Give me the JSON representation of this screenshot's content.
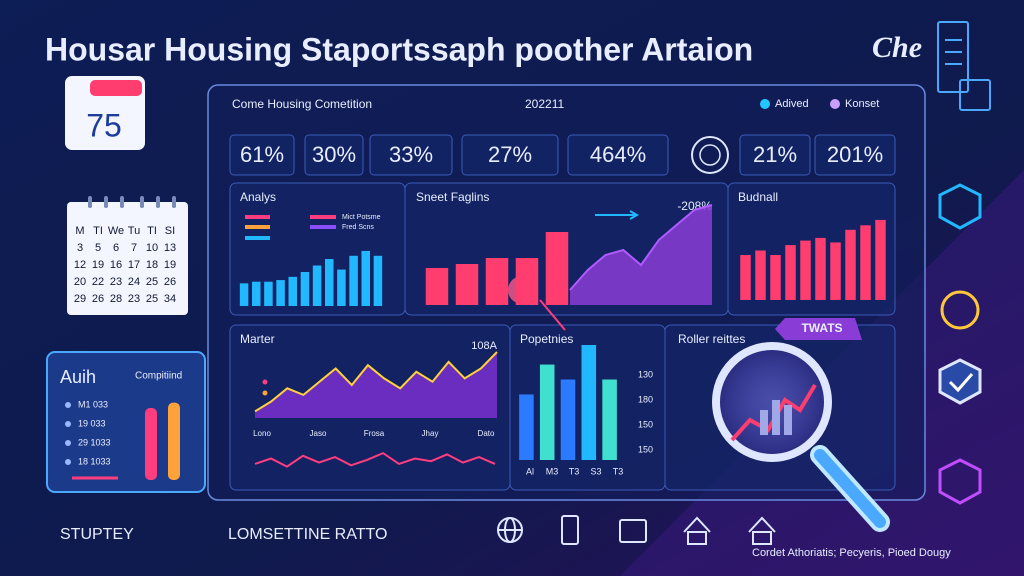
{
  "header": {
    "title": "Housar Housing Staportssaph poother Artaion",
    "badge": "Che"
  },
  "date_widget": {
    "value": "75"
  },
  "calendar": {
    "rows": [
      [
        "M",
        "TI",
        "We",
        "Tu",
        "TI",
        "SI"
      ],
      [
        "3",
        "5",
        "6",
        "7",
        "10",
        "13"
      ],
      [
        "12",
        "19",
        "16",
        "17",
        "18",
        "19"
      ],
      [
        "20",
        "22",
        "23",
        "24",
        "25",
        "26"
      ],
      [
        "29",
        "26",
        "28",
        "23",
        "25",
        "34"
      ]
    ]
  },
  "side_panel": {
    "title": "Auih",
    "subtitle": "Compitiind",
    "items": [
      "M1 033",
      "19 033",
      "29 1033",
      "18 1033"
    ],
    "ylim": [
      0,
      100
    ],
    "bars": [
      {
        "color": "#ff3d7f",
        "value": 80
      },
      {
        "color": "#ffa23a",
        "value": 86
      }
    ]
  },
  "dashboard": {
    "title": "Come Housing Cometition",
    "period": "202211",
    "legend": [
      {
        "name": "Adived",
        "color": "#22c7ff"
      },
      {
        "name": "Konset",
        "color": "#c9a0ff"
      }
    ],
    "kpis": [
      "61%",
      "30%",
      "33%",
      "27%",
      "464%",
      "21%",
      "201%"
    ],
    "analys": {
      "title": "Analys",
      "legend": [
        {
          "name": "Mict Potsme",
          "color": "#ff3d7f"
        },
        {
          "name": "Fred Scns",
          "color": "#8a4dff"
        }
      ],
      "ylim": [
        0,
        100
      ],
      "color": "#22b8ff",
      "values": [
        28,
        30,
        30,
        32,
        36,
        42,
        50,
        58,
        45,
        62,
        68,
        62
      ]
    },
    "sneet": {
      "title": "Sneet Faglins",
      "annotation": "-208%",
      "ylim": [
        0,
        100
      ],
      "bar_color": "#ff3d6e",
      "area_color": "#8a3dd6",
      "bars": [
        37,
        41,
        47,
        47,
        73
      ],
      "area": [
        15,
        35,
        50,
        55,
        40,
        65,
        80,
        95,
        100
      ]
    },
    "budnall": {
      "title": "Budnall",
      "ylim": [
        0,
        100
      ],
      "color": "#ff3d6e",
      "values": [
        50,
        55,
        50,
        61,
        66,
        69,
        64,
        78,
        83,
        89
      ]
    },
    "marter": {
      "title": "Marter",
      "annotation": "108A",
      "x_labels": [
        "Lono",
        "Jaso",
        "Frosa",
        "Jhay",
        "Dato"
      ],
      "ylim": [
        0,
        100
      ],
      "area_color": "#7b2fd0",
      "line_color": "#ffd23a",
      "area": [
        10,
        25,
        45,
        35,
        55,
        75,
        50,
        80,
        60,
        45,
        70,
        55,
        85,
        60,
        75,
        100
      ],
      "lower_line_color": "#ff3d7f",
      "lower_line": [
        30,
        50,
        20,
        60,
        35,
        55,
        25,
        45,
        70,
        30,
        50,
        40,
        65,
        35,
        55,
        30
      ]
    },
    "popetnies": {
      "title": "Popetnies",
      "y_labels": [
        "130",
        "180",
        "150",
        "150"
      ],
      "x_labels": [
        "Al",
        "M3",
        "T3",
        "S3",
        "T3"
      ],
      "ylim": [
        0,
        100
      ],
      "colors": [
        "#2a7bff",
        "#3fe0d0",
        "#2a7bff",
        "#22b8ff",
        "#3fe0d0"
      ],
      "values": [
        57,
        83,
        70,
        100,
        70
      ]
    },
    "roller": {
      "title": "Roller reittes",
      "tag": "TWATS"
    }
  },
  "footer": {
    "left": "STUPTEY",
    "middle": "LOMSETTINE RATTO",
    "right": "Cordet Athoriatis; Pecyeris, Pioed Dougy"
  }
}
